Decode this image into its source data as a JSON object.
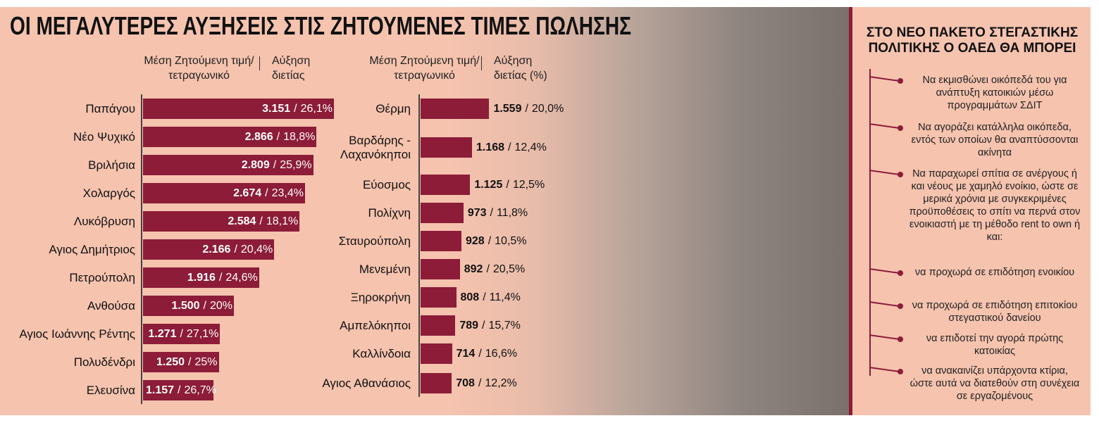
{
  "title": "ΟΙ ΜΕΓΑΛΥΤΕΡΕΣ ΑΥΞΗΣΕΙΣ ΣΤΙΣ ΖΗΤΟΥΜΕΝΕΣ ΤΙΜΕΣ ΠΩΛΗΣΗΣ",
  "chart_data": [
    {
      "type": "bar",
      "orientation": "horizontal",
      "value_separator": "/",
      "categories": [
        "Παπάγου",
        "Νέο Ψυχικό",
        "Βριλήσια",
        "Χολαργός",
        "Λυκόβρυση",
        "Αγιος Δημήτριος",
        "Πετρούπολη",
        "Ανθούσα",
        "Αγιος Ιωάννης Ρέντης",
        "Πολυδένδρι",
        "Ελευσίνα"
      ],
      "series": [
        {
          "name": "Μέση Ζητούμενη τιμή/τετραγωνικό",
          "color": "#8c1c38",
          "values": [
            3151,
            2866,
            2809,
            2674,
            2584,
            2166,
            1916,
            1500,
            1271,
            1250,
            1157
          ],
          "value_labels": [
            "3.151",
            "2.866",
            "2.809",
            "2.674",
            "2.584",
            "2.166",
            "1.916",
            "1.500",
            "1.271",
            "1.250",
            "1.157"
          ]
        },
        {
          "name": "Αύξηση διετίας",
          "values": [
            26.1,
            18.8,
            25.9,
            23.4,
            18.1,
            20.4,
            24.6,
            20,
            27.1,
            25,
            26.7
          ],
          "value_labels": [
            "26,1%",
            "18,8%",
            "25,9%",
            "23,4%",
            "18,1%",
            "20,4%",
            "24,6%",
            "20%",
            "27,1%",
            "25%",
            "26,7%"
          ]
        }
      ]
    },
    {
      "type": "bar",
      "orientation": "horizontal",
      "value_separator": "/",
      "categories": [
        "Θέρμη",
        "Βαρδάρης - Λαχανόκηποι",
        "Εύοσμος",
        "Πολίχνη",
        "Σταυρούπολη",
        "Μενεμένη",
        "Ξηροκρήνη",
        "Αμπελόκηποι",
        "Καλλίνδοια",
        "Αγιος Αθανάσιος"
      ],
      "series": [
        {
          "name": "Μέση Ζητούμενη τιμή/τετραγωνικό",
          "color": "#8c1c38",
          "values": [
            1559,
            1168,
            1125,
            973,
            928,
            892,
            808,
            789,
            714,
            708
          ],
          "value_labels": [
            "1.559",
            "1.168",
            "1.125",
            "973",
            "928",
            "892",
            "808",
            "789",
            "714",
            "708"
          ]
        },
        {
          "name": "Αύξηση διετίας (%)",
          "values": [
            20.0,
            12.4,
            12.5,
            11.8,
            10.5,
            20.5,
            11.4,
            15.7,
            16.6,
            12.2
          ],
          "value_labels": [
            "20,0%",
            "12,4%",
            "12,5%",
            "11,8%",
            "10,5%",
            "20,5%",
            "11,4%",
            "15,7%",
            "16,6%",
            "12,2%"
          ]
        }
      ]
    }
  ],
  "side_panel": {
    "title": "ΣΤΟ ΝΕΟ ΠΑΚΕΤΟ ΣΤΕΓΑΣΤΙΚΗΣ ΠΟΛΙΤΙΚΗΣ Ο ΟΑΕΔ ΘΑ ΜΠΟΡΕΙ",
    "items": [
      "Να εκμισθώνει οικόπεδά του για ανάπτυξη κατοικιών μέσω προγραμμάτων ΣΔΙΤ",
      "Να αγοράζει κατάλληλα οικόπεδα, εντός των οποίων θα αναπτύσσονται ακίνητα",
      "Να παραχωρεί σπίτια σε ανέργους ή και νέους με χαμηλό ενοίκιο, ώστε σε μερικά χρόνια με συγκεκριμένες προϋποθέσεις το σπίτι να περνά στον ενοικιαστή με τη μέθοδο rent to own ή και:",
      "να προχωρά σε επιδότηση ενοικίου",
      "να προχωρά σε επιδότηση επιτοκίου στεγαστικού δανείου",
      "να επιδοτεί την αγορά πρώτης κατοικίας",
      "να ανακαινίζει υπάρχοντα κτίρια, ώστε αυτά να διατεθούν στη συνέχεια σε εργαζομένους"
    ]
  }
}
